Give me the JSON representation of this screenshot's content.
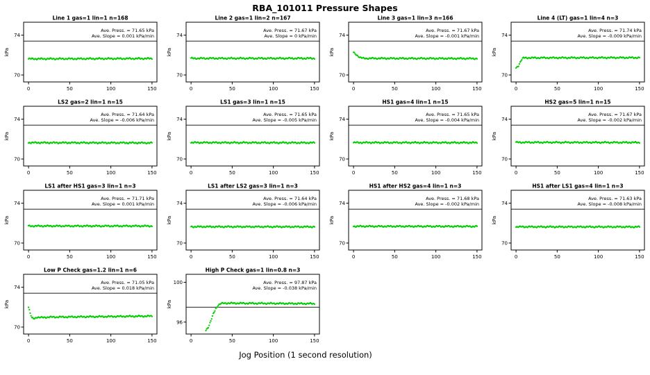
{
  "title": "RBA_101011  Pressure Shapes",
  "xlabel": "Jog Position (1 second resolution)",
  "chart_data": {
    "type": "scatter",
    "layout": {
      "rows": 4,
      "cols": 4,
      "num_plots": 14
    },
    "point_color": "#00CD00",
    "xticks": [
      0,
      50,
      100,
      150
    ],
    "xlim": [
      -6,
      156
    ],
    "plots": [
      {
        "title": "Line 1 gas=1 lin=1 n=168",
        "ylabel": "kPa",
        "yticks": [
          70,
          74
        ],
        "ylim": [
          69.3,
          75.3
        ],
        "refline": 73.4,
        "ave_press": "Ave. Press. = 71.65 kPa",
        "ave_slope": "Ave. Slope = 0.001 kPa/min",
        "anchors": [
          [
            0,
            71.62
          ],
          [
            150,
            71.65
          ]
        ]
      },
      {
        "title": "Line 2 gas=1 lin=2 n=167",
        "ylabel": "kPa",
        "yticks": [
          70,
          74
        ],
        "ylim": [
          69.3,
          75.3
        ],
        "refline": 73.4,
        "ave_press": "Ave. Press. = 71.67 kPa",
        "ave_slope": "Ave. Slope = 0 kPa/min",
        "anchors": [
          [
            0,
            71.67
          ],
          [
            150,
            71.67
          ]
        ]
      },
      {
        "title": "Line 3 gas=1 lin=3 n=166",
        "ylabel": "kPa",
        "yticks": [
          70,
          74
        ],
        "ylim": [
          69.3,
          75.3
        ],
        "refline": 73.4,
        "ave_press": "Ave. Press. = 71.67 kPa",
        "ave_slope": "Ave. Slope = -0.001 kPa/min",
        "anchors": [
          [
            0,
            72.25
          ],
          [
            4,
            72.0
          ],
          [
            8,
            71.75
          ],
          [
            12,
            71.67
          ],
          [
            150,
            71.65
          ]
        ]
      },
      {
        "title": "Line 4 (LT) gas=1 lin=4 n=3",
        "ylabel": "kPa",
        "yticks": [
          70,
          74
        ],
        "ylim": [
          69.3,
          75.3
        ],
        "refline": 73.4,
        "ave_press": "Ave. Press. = 71.74 kPa",
        "ave_slope": "Ave. Slope = -0.009 kPa/min",
        "anchors": [
          [
            0,
            70.7
          ],
          [
            3,
            70.95
          ],
          [
            6,
            71.45
          ],
          [
            9,
            71.72
          ],
          [
            150,
            71.74
          ]
        ]
      },
      {
        "title": "LS2 gas=2 lin=1 n=15",
        "ylabel": "kPa",
        "yticks": [
          70,
          74
        ],
        "ylim": [
          69.3,
          75.3
        ],
        "refline": 73.4,
        "ave_press": "Ave. Press. = 71.64 kPa",
        "ave_slope": "Ave. Slope = -0.006 kPa/min",
        "anchors": [
          [
            0,
            71.64
          ],
          [
            150,
            71.62
          ]
        ]
      },
      {
        "title": "LS1 gas=3 lin=1 n=15",
        "ylabel": "kPa",
        "yticks": [
          70,
          74
        ],
        "ylim": [
          69.3,
          75.3
        ],
        "refline": 73.4,
        "ave_press": "Ave. Press. = 71.65 kPa",
        "ave_slope": "Ave. Slope = -0.005 kPa/min",
        "anchors": [
          [
            0,
            71.65
          ],
          [
            150,
            71.63
          ]
        ]
      },
      {
        "title": "HS1 gas=4 lin=1 n=15",
        "ylabel": "kPa",
        "yticks": [
          70,
          74
        ],
        "ylim": [
          69.3,
          75.3
        ],
        "refline": 73.4,
        "ave_press": "Ave. Press. = 71.65 kPa",
        "ave_slope": "Ave. Slope = -0.004 kPa/min",
        "anchors": [
          [
            0,
            71.65
          ],
          [
            150,
            71.64
          ]
        ]
      },
      {
        "title": "HS2 gas=5 lin=1 n=15",
        "ylabel": "kPa",
        "yticks": [
          70,
          74
        ],
        "ylim": [
          69.3,
          75.3
        ],
        "refline": 73.4,
        "ave_press": "Ave. Press. = 71.67 kPa",
        "ave_slope": "Ave. Slope = -0.002 kPa/min",
        "anchors": [
          [
            0,
            71.67
          ],
          [
            150,
            71.66
          ]
        ]
      },
      {
        "title": "LS1 after HS1 gas=3 lin=1 n=3",
        "ylabel": "kPa",
        "yticks": [
          70,
          74
        ],
        "ylim": [
          69.3,
          75.3
        ],
        "refline": 73.4,
        "ave_press": "Ave. Press. = 71.71 kPa",
        "ave_slope": "Ave. Slope = 0.001 kPa/min",
        "anchors": [
          [
            0,
            71.71
          ],
          [
            150,
            71.71
          ]
        ]
      },
      {
        "title": "LS1 after LS2 gas=3 lin=1 n=3",
        "ylabel": "kPa",
        "yticks": [
          70,
          74
        ],
        "ylim": [
          69.3,
          75.3
        ],
        "refline": 73.4,
        "ave_press": "Ave. Press. = 71.64 kPa",
        "ave_slope": "Ave. Slope = -0.006 kPa/min",
        "anchors": [
          [
            0,
            71.64
          ],
          [
            150,
            71.63
          ]
        ]
      },
      {
        "title": "HS1 after HS2 gas=4 lin=1 n=3",
        "ylabel": "kPa",
        "yticks": [
          70,
          74
        ],
        "ylim": [
          69.3,
          75.3
        ],
        "refline": 73.4,
        "ave_press": "Ave. Press. = 71.68 kPa",
        "ave_slope": "Ave. Slope = -0.002 kPa/min",
        "anchors": [
          [
            0,
            71.68
          ],
          [
            150,
            71.67
          ]
        ]
      },
      {
        "title": "HS1 after LS1 gas=4 lin=1 n=3",
        "ylabel": "kPa",
        "yticks": [
          70,
          74
        ],
        "ylim": [
          69.3,
          75.3
        ],
        "refline": 73.4,
        "ave_press": "Ave. Press. = 71.63 kPa",
        "ave_slope": "Ave. Slope = -0.008 kPa/min",
        "anchors": [
          [
            0,
            71.63
          ],
          [
            150,
            71.62
          ]
        ]
      },
      {
        "title": "Low P Check gas=1.2 lin=1 n=6",
        "ylabel": "kPa",
        "yticks": [
          70,
          74
        ],
        "ylim": [
          69.3,
          75.3
        ],
        "refline": 73.4,
        "ave_press": "Ave. Press. = 71.05 kPa",
        "ave_slope": "Ave. Slope = 0.018 kPa/min",
        "anchors": [
          [
            0,
            72.0
          ],
          [
            2,
            71.4
          ],
          [
            4,
            70.9
          ],
          [
            7,
            70.85
          ],
          [
            10,
            71.0
          ],
          [
            15,
            70.95
          ],
          [
            25,
            71.0
          ],
          [
            150,
            71.1
          ]
        ]
      },
      {
        "title": "High P Check gas=1 lin=0.8 n=3",
        "ylabel": "kPa",
        "yticks": [
          96,
          100
        ],
        "ylim": [
          94.8,
          100.8
        ],
        "refline": 97.5,
        "ave_press": "Ave. Press. = 97.87 kPa",
        "ave_slope": "Ave. Slope = -0.038 kPa/min",
        "anchors": [
          [
            18,
            95.2
          ],
          [
            21,
            95.5
          ],
          [
            24,
            96.1
          ],
          [
            27,
            96.8
          ],
          [
            30,
            97.35
          ],
          [
            33,
            97.7
          ],
          [
            36,
            97.85
          ],
          [
            40,
            97.9
          ],
          [
            150,
            97.85
          ]
        ]
      }
    ]
  }
}
